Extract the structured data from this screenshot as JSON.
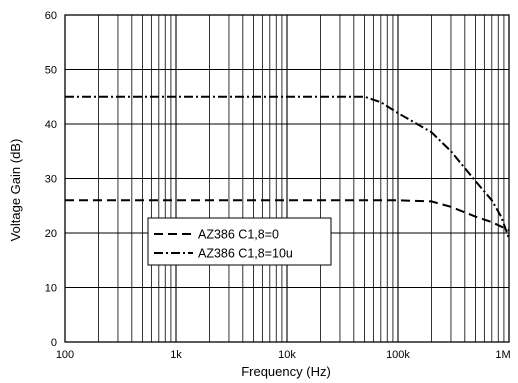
{
  "chart_data": {
    "type": "line",
    "title": "",
    "xlabel": "Frequency (Hz)",
    "ylabel": "Voltage Gain (dB)",
    "x_scale": "log",
    "xlim": [
      100,
      1000000
    ],
    "ylim": [
      0,
      60
    ],
    "x_ticks": [
      {
        "value": 100,
        "label": "100"
      },
      {
        "value": 1000,
        "label": "1k"
      },
      {
        "value": 10000,
        "label": "10k"
      },
      {
        "value": 100000,
        "label": "100k"
      },
      {
        "value": 1000000,
        "label": "1M"
      }
    ],
    "y_ticks": [
      0,
      10,
      20,
      30,
      40,
      50,
      60
    ],
    "grid": true,
    "legend_position": "lower-left",
    "series": [
      {
        "name": "AZ386 C1,8=0",
        "line_style": "dashed",
        "color": "#000000",
        "points": [
          [
            100,
            26
          ],
          [
            1000,
            26
          ],
          [
            10000,
            26
          ],
          [
            100000,
            26
          ],
          [
            200000,
            25.8
          ],
          [
            300000,
            24.8
          ],
          [
            500000,
            23
          ],
          [
            700000,
            22
          ],
          [
            1000000,
            20.5
          ]
        ]
      },
      {
        "name": "AZ386 C1,8=10u",
        "line_style": "dash-dot",
        "color": "#000000",
        "points": [
          [
            100,
            45
          ],
          [
            1000,
            45
          ],
          [
            10000,
            45
          ],
          [
            50000,
            45
          ],
          [
            70000,
            44
          ],
          [
            100000,
            42
          ],
          [
            200000,
            38.5
          ],
          [
            300000,
            35
          ],
          [
            500000,
            29.5
          ],
          [
            700000,
            26
          ],
          [
            850000,
            23
          ],
          [
            1000000,
            19
          ]
        ]
      }
    ]
  }
}
